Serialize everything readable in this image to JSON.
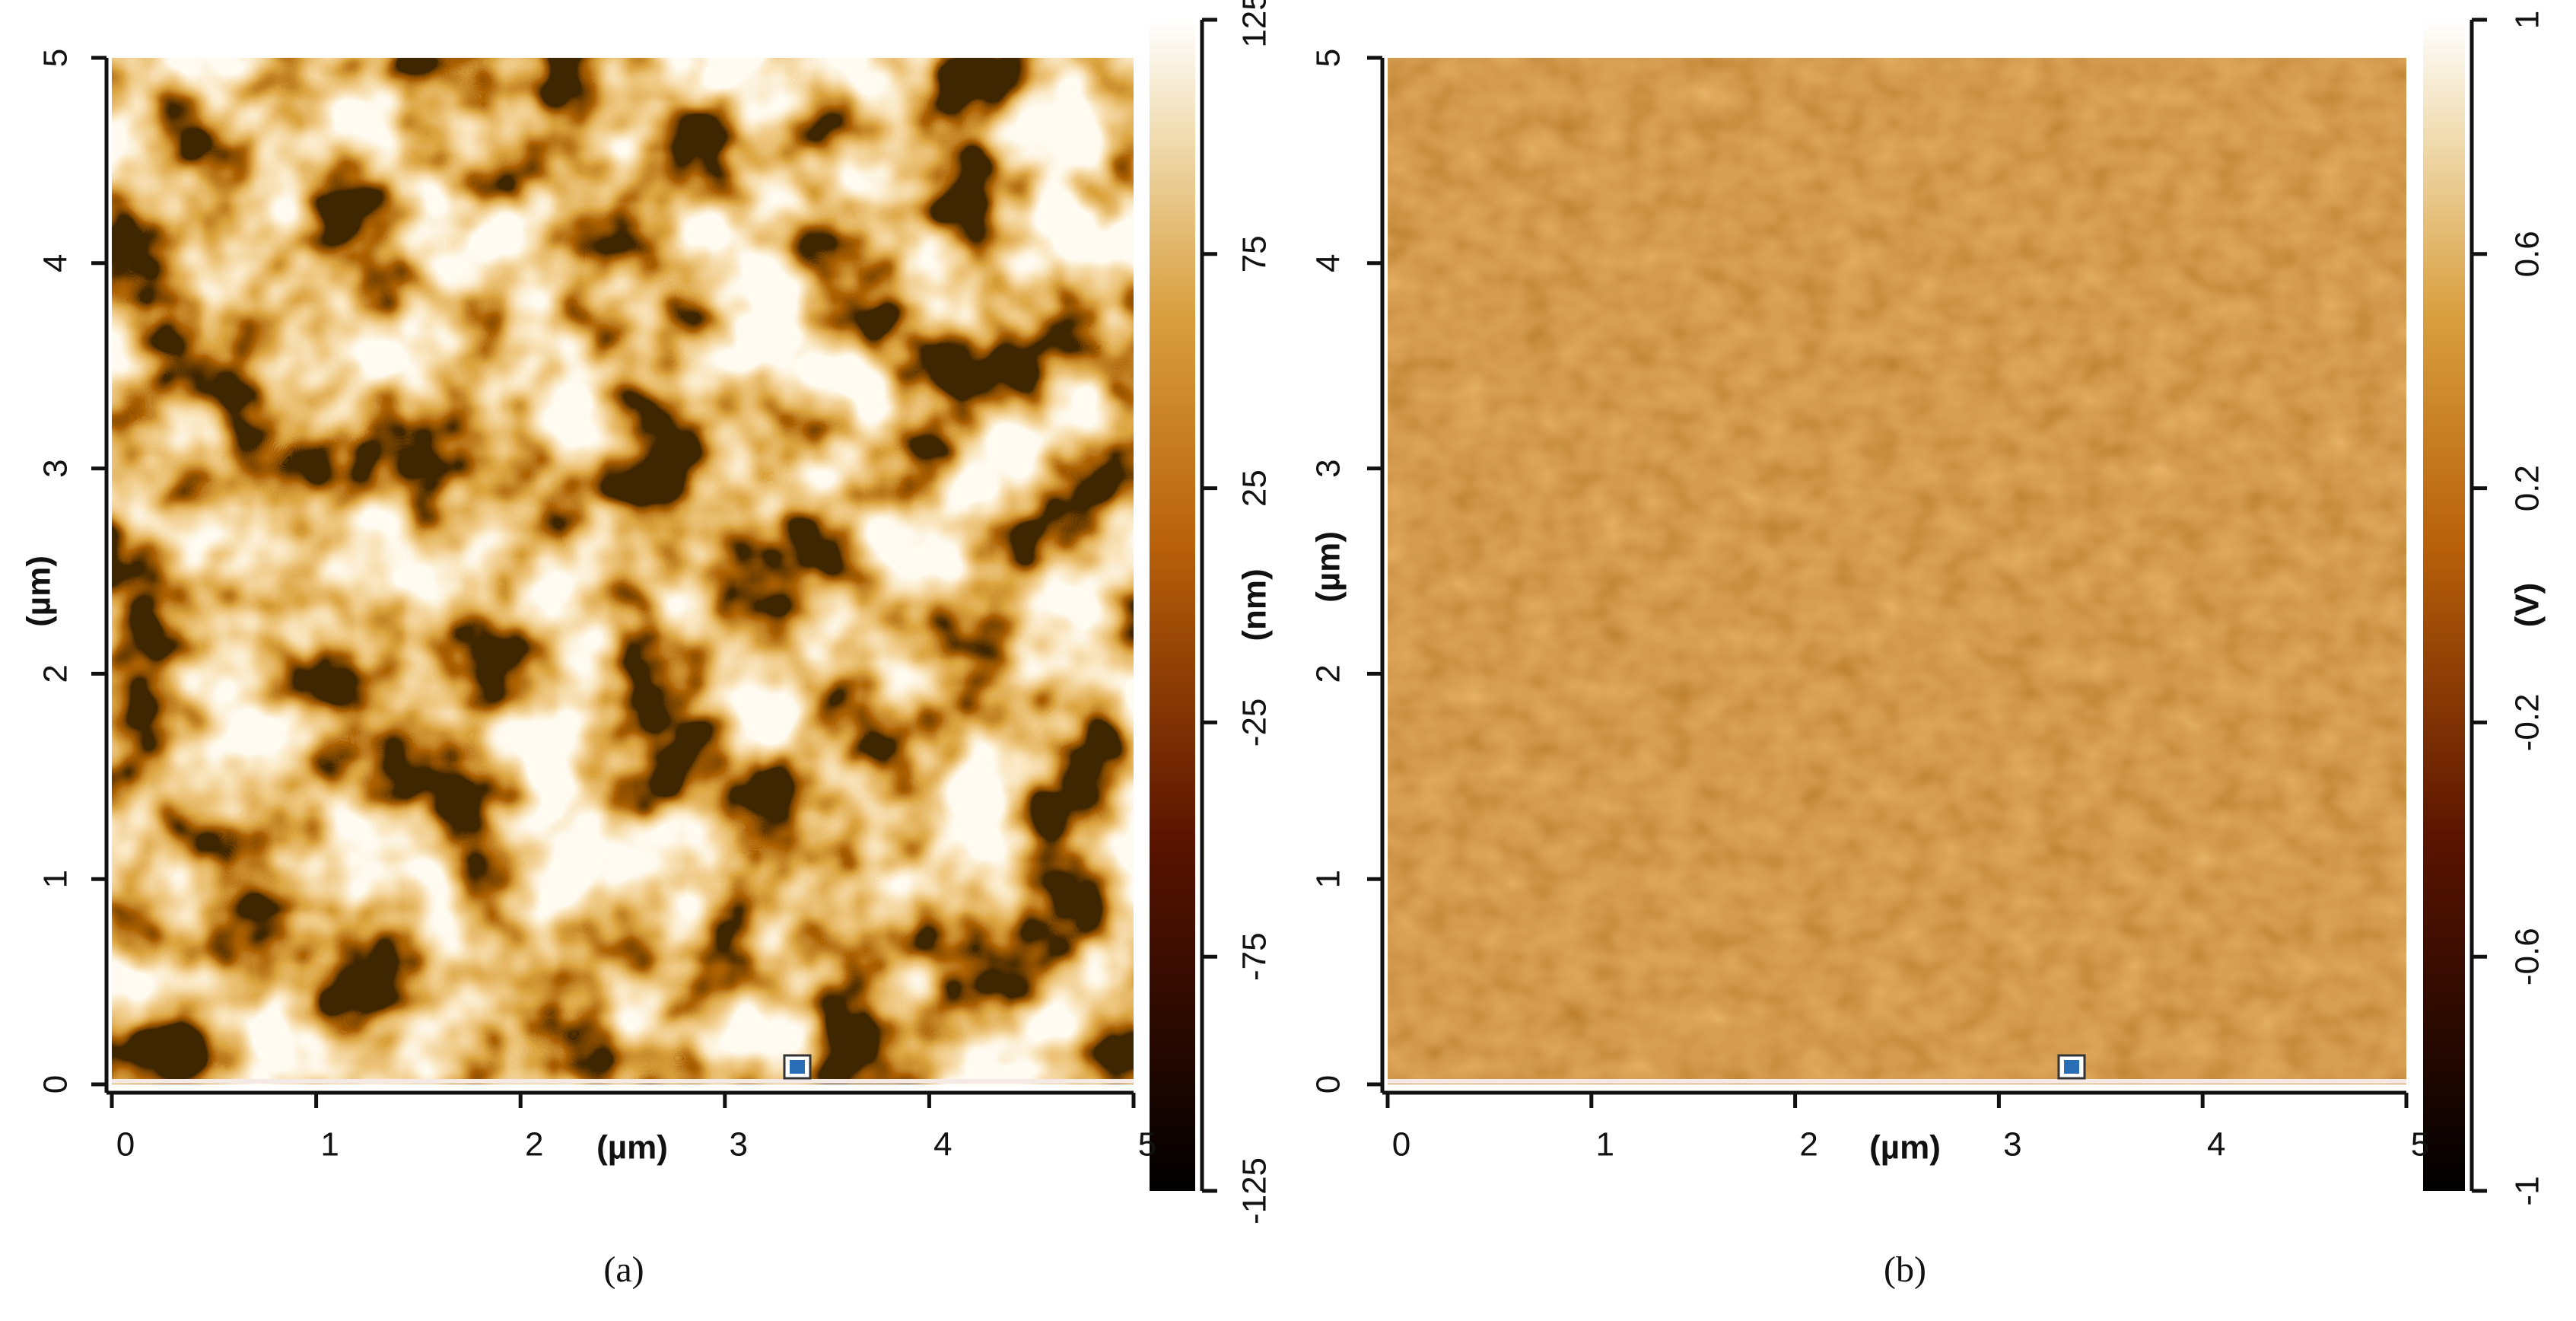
{
  "panels": [
    {
      "caption": "(a)",
      "x_label": "(µm)",
      "y_label": "(µm)",
      "xlim": [
        0,
        5
      ],
      "ylim": [
        0,
        5
      ],
      "xticks": [
        0,
        1,
        2,
        3,
        4,
        5
      ],
      "yticks": [
        0,
        1,
        2,
        3,
        4,
        5
      ],
      "colorbar": {
        "label": "(nm)",
        "lim": [
          -125,
          125
        ],
        "ticks": [
          125,
          75,
          25,
          -25,
          -75,
          -125
        ]
      }
    },
    {
      "caption": "(b)",
      "x_label": "(µm)",
      "y_label": "(µm)",
      "xlim": [
        0,
        5
      ],
      "ylim": [
        0,
        5
      ],
      "xticks": [
        0,
        1,
        2,
        3,
        4,
        5
      ],
      "yticks": [
        0,
        1,
        2,
        3,
        4,
        5
      ],
      "colorbar": {
        "label": "(V)",
        "lim": [
          -1,
          1
        ],
        "ticks": [
          1,
          0.6,
          0.2,
          -0.2,
          -0.6,
          -1
        ]
      }
    }
  ]
}
